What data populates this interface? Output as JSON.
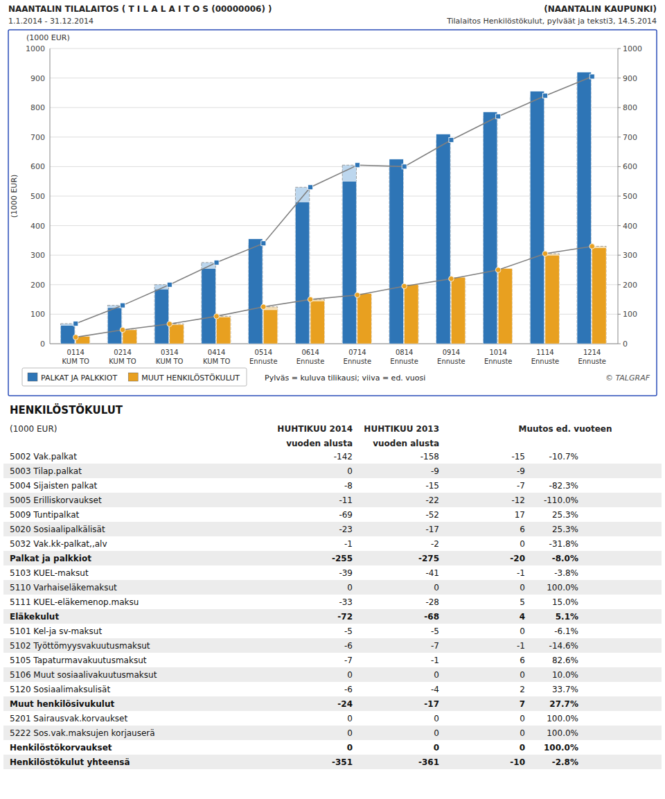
{
  "chart_data": {
    "type": "bar",
    "title": "NAANTALIN TILALAITOS ( T I L A L A I T O S (00000006) )",
    "subtitle": "1.1.2014 - 31.12.2014",
    "annotations": [
      "(NAANTALIN KAUPUNKI)",
      "Tilalaitos Henkilöstökulut, pylväät ja teksti3, 14.5.2014",
      "Pylväs = kuluva tilikausi; viiva = ed. vuosi",
      "© TALGRAF"
    ],
    "y_label": "(1000 EUR)",
    "categories": [
      "0114\nKUM TO",
      "0214\nKUM TO",
      "0314\nKUM TO",
      "0414\nKUM TO",
      "0514\nEnnuste",
      "0614\nEnnuste",
      "0714\nEnnuste",
      "0814\nEnnuste",
      "0914\nEnnuste",
      "1014\nEnnuste",
      "1114\nEnnuste",
      "1214\nEnnuste"
    ],
    "series": [
      {
        "type": "bar",
        "color": "#BDD7EE",
        "line_style": "dashed",
        "values": [
          68,
          130,
          200,
          275,
          340,
          530,
          605,
          600,
          690,
          770,
          840,
          905
        ]
      },
      {
        "type": "bar",
        "color": "#F5DEB3",
        "line_style": "dashed",
        "values": [
          22,
          47,
          67,
          93,
          125,
          150,
          165,
          195,
          220,
          250,
          305,
          330
        ]
      },
      {
        "type": "bar",
        "name": "PALKAT JA PALKKIOT",
        "color": "#2E75B6",
        "values": [
          62,
          122,
          185,
          255,
          355,
          480,
          550,
          625,
          710,
          785,
          855,
          920
        ]
      },
      {
        "type": "bar",
        "name": "MUUT HENKILÖSTÖKULUT",
        "color": "#E8A020",
        "values": [
          25,
          47,
          65,
          90,
          115,
          145,
          170,
          200,
          225,
          255,
          300,
          325
        ]
      },
      {
        "type": "line",
        "color": "#808080",
        "marker": "square",
        "values": [
          68,
          130,
          200,
          275,
          340,
          530,
          605,
          600,
          690,
          770,
          840,
          905
        ]
      },
      {
        "type": "line",
        "color": "#808080",
        "marker": "circle",
        "values": [
          22,
          47,
          67,
          93,
          125,
          150,
          165,
          195,
          220,
          250,
          305,
          330
        ]
      }
    ],
    "ylim": [
      0,
      1000
    ],
    "yticks": [
      0,
      100,
      200,
      300,
      400,
      500,
      600,
      700,
      800,
      900,
      1000
    ],
    "y2lim": [
      0,
      1000
    ],
    "y2ticks": [
      0,
      100,
      200,
      300,
      400,
      500,
      600,
      700,
      800,
      900,
      1000
    ],
    "grid": true,
    "legend": "bottom"
  },
  "table": {
    "title": "HENKILÖSTÖKULUT",
    "unit": "(1000 EUR)",
    "columns": [
      {
        "label": "HUHTIKUU 2014",
        "sublabel": "vuoden alusta"
      },
      {
        "label": "HUHTIKUU 2013",
        "sublabel": "vuoden alusta"
      },
      {
        "label": "Muutos ed. vuoteen"
      }
    ],
    "rows": [
      {
        "label": "5002 Vak.palkat",
        "cells": [
          "-142",
          "-158",
          "-15",
          "-10.7%"
        ],
        "bold": false,
        "shaded": false
      },
      {
        "label": "5003 Tilap.palkat",
        "cells": [
          "0",
          "-9",
          "-9",
          null
        ],
        "bold": false,
        "shaded": true
      },
      {
        "label": "5004 Sijaisten palkat",
        "cells": [
          "-8",
          "-15",
          "-7",
          "-82.3%"
        ],
        "bold": false,
        "shaded": false
      },
      {
        "label": "5005 Erilliskorvaukset",
        "cells": [
          "-11",
          "-22",
          "-12",
          "-110.0%"
        ],
        "bold": false,
        "shaded": true
      },
      {
        "label": "5009 Tuntipalkat",
        "cells": [
          "-69",
          "-52",
          "17",
          "25.3%"
        ],
        "bold": false,
        "shaded": false
      },
      {
        "label": "5020 Sosiaalipalkälisät",
        "cells": [
          "-23",
          "-17",
          "6",
          "25.3%"
        ],
        "bold": false,
        "shaded": true
      },
      {
        "label": "5032 Vak.kk-palkat,,alv",
        "cells": [
          "-1",
          "-2",
          "0",
          "-31.8%"
        ],
        "bold": false,
        "shaded": false
      },
      {
        "label": "Palkat ja palkkiot",
        "cells": [
          "-255",
          "-275",
          "-20",
          "-8.0%"
        ],
        "bold": true,
        "shaded": true
      },
      {
        "label": "5103 KUEL-maksut",
        "cells": [
          "-39",
          "-41",
          "-1",
          "-3.8%"
        ],
        "bold": false,
        "shaded": false
      },
      {
        "label": "5110 Varhaiseläkemaksut",
        "cells": [
          "0",
          "0",
          "0",
          "100.0%"
        ],
        "bold": false,
        "shaded": true
      },
      {
        "label": "5111 KUEL-eläkemenop.maksu",
        "cells": [
          "-33",
          "-28",
          "5",
          "15.0%"
        ],
        "bold": false,
        "shaded": false
      },
      {
        "label": "Eläkekulut",
        "cells": [
          "-72",
          "-68",
          "4",
          "5.1%"
        ],
        "bold": true,
        "shaded": true
      },
      {
        "label": "5101 Kel-ja sv-maksut",
        "cells": [
          "-5",
          "-5",
          "0",
          "-6.1%"
        ],
        "bold": false,
        "shaded": false
      },
      {
        "label": "5102 Työttömyysvakuutusmaksut",
        "cells": [
          "-6",
          "-7",
          "-1",
          "-14.6%"
        ],
        "bold": false,
        "shaded": true
      },
      {
        "label": "5105 Tapaturmavakuutusmaksut",
        "cells": [
          "-7",
          "-1",
          "6",
          "82.6%"
        ],
        "bold": false,
        "shaded": false
      },
      {
        "label": "5106 Muut sosiaalivakuutusmaksut",
        "cells": [
          "0",
          "0",
          "0",
          "10.0%"
        ],
        "bold": false,
        "shaded": true
      },
      {
        "label": "5120 Sosiaalimaksulisät",
        "cells": [
          "-6",
          "-4",
          "2",
          "33.7%"
        ],
        "bold": false,
        "shaded": false
      },
      {
        "label": "Muut henkilösivukulut",
        "cells": [
          "-24",
          "-17",
          "7",
          "27.7%"
        ],
        "bold": true,
        "shaded": true
      },
      {
        "label": "5201 Sairausvak.korvaukset",
        "cells": [
          "0",
          "0",
          "0",
          "100.0%"
        ],
        "bold": false,
        "shaded": false
      },
      {
        "label": "5222 Sos.vak.maksujen korjauserä",
        "cells": [
          "0",
          "0",
          "0",
          "100.0%"
        ],
        "bold": false,
        "shaded": true
      },
      {
        "label": "Henkilöstökorvaukset",
        "cells": [
          "0",
          "0",
          "0",
          "100.0%"
        ],
        "bold": true,
        "shaded": false
      },
      {
        "label": "Henkilöstökulut yhteensä",
        "cells": [
          "-351",
          "-361",
          "-10",
          "-2.8%"
        ],
        "bold": true,
        "shaded": true
      }
    ]
  }
}
